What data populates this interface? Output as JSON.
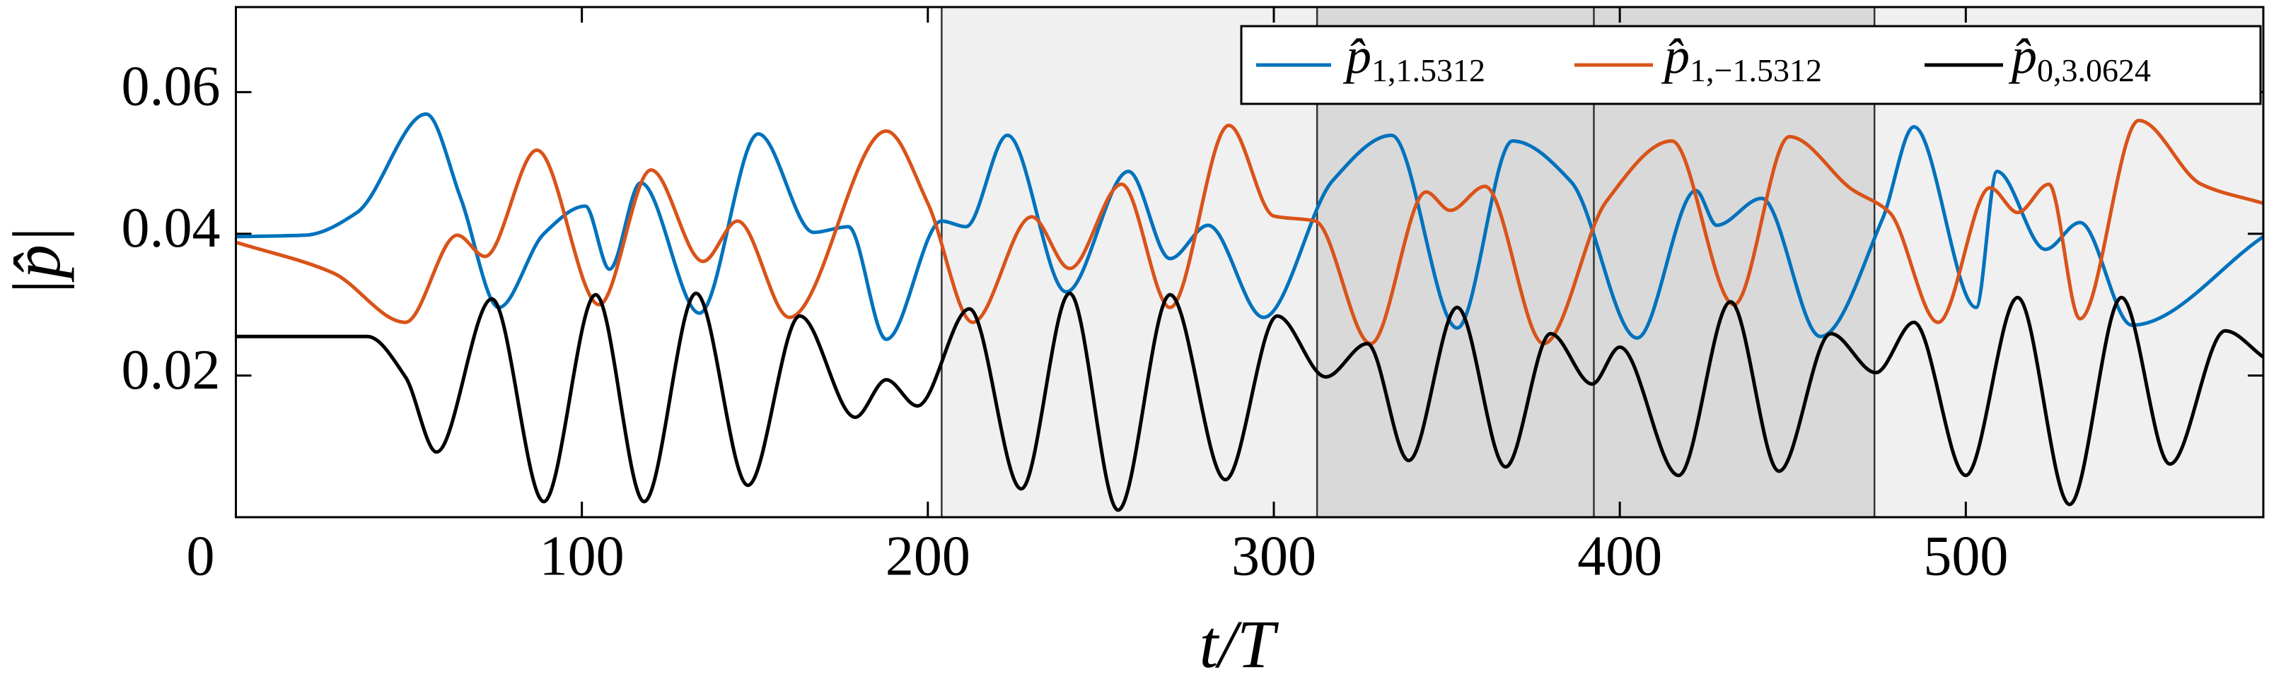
{
  "chart_data": {
    "type": "line",
    "xlabel": "t/T",
    "ylabel": "|p̂|",
    "xlim": [
      0,
      586
    ],
    "ylim": [
      0,
      0.072
    ],
    "xticks": [
      0,
      100,
      200,
      300,
      400,
      500
    ],
    "yticks": [
      0.02,
      0.04,
      0.06
    ],
    "regions": [
      {
        "from": 204,
        "to": 312.5,
        "color": "#f0f0f0"
      },
      {
        "from": 312.5,
        "to": 473.6,
        "color": "#d9d9d9"
      },
      {
        "from": 473.6,
        "to": 586,
        "color": "#f0f0f0"
      }
    ],
    "vlines": [
      204,
      312.5,
      392.5,
      473.6
    ],
    "legend": "upper right",
    "series": [
      {
        "name": "p̂1,1.5312",
        "color": "#0072bd",
        "x": [
          0,
          20,
          35,
          55,
          65,
          76,
          89,
          101,
          108,
          117,
          134,
          151,
          167,
          177,
          188,
          204,
          211,
          223,
          240,
          258,
          270,
          281,
          297,
          317,
          334,
          353,
          369,
          386,
          405,
          422,
          428,
          441,
          458,
          476,
          485,
          503,
          509,
          523,
          533,
          548,
          586
        ],
        "values": [
          0.0396,
          0.0398,
          0.043,
          0.0569,
          0.045,
          0.0296,
          0.04,
          0.0439,
          0.035,
          0.0472,
          0.0288,
          0.0541,
          0.0402,
          0.041,
          0.0251,
          0.0418,
          0.041,
          0.0539,
          0.0318,
          0.0488,
          0.0365,
          0.0412,
          0.0282,
          0.0475,
          0.0539,
          0.0267,
          0.0531,
          0.0473,
          0.0253,
          0.0461,
          0.0412,
          0.045,
          0.0255,
          0.0422,
          0.0551,
          0.0296,
          0.0488,
          0.0378,
          0.0416,
          0.0271,
          0.0396
        ]
      },
      {
        "name": "p̂1,−1.5312",
        "color": "#d95319",
        "x": [
          0,
          28,
          49,
          64,
          72,
          87,
          105,
          120,
          135,
          145,
          160,
          188,
          200,
          213,
          230,
          241,
          256,
          270,
          287,
          300,
          312,
          328,
          344,
          351,
          361,
          378,
          396,
          415,
          433,
          449,
          467,
          478,
          492,
          507,
          515,
          524,
          533,
          550,
          568,
          586
        ],
        "values": [
          0.0388,
          0.0345,
          0.0275,
          0.0398,
          0.0368,
          0.0518,
          0.03,
          0.049,
          0.0361,
          0.0418,
          0.0282,
          0.0545,
          0.0443,
          0.0275,
          0.0424,
          0.0351,
          0.047,
          0.0296,
          0.0553,
          0.0425,
          0.0418,
          0.0245,
          0.0459,
          0.0433,
          0.0467,
          0.0245,
          0.0445,
          0.0531,
          0.03,
          0.0537,
          0.0463,
          0.043,
          0.0275,
          0.0465,
          0.043,
          0.047,
          0.028,
          0.056,
          0.047,
          0.0443
        ]
      },
      {
        "name": "p̂0,3.0624",
        "color": "#000000",
        "x": [
          0,
          38,
          49,
          58,
          74,
          89,
          104,
          118,
          133,
          148,
          163,
          179,
          188,
          197,
          212,
          227,
          241,
          255,
          270,
          286,
          301,
          315,
          327,
          339,
          353,
          367,
          380,
          392,
          400,
          417,
          432,
          446,
          461,
          474,
          485,
          500,
          515,
          530,
          545,
          559,
          575,
          586
        ],
        "values": [
          0.0255,
          0.0255,
          0.0198,
          0.0092,
          0.0308,
          0.0022,
          0.0314,
          0.0022,
          0.0316,
          0.0045,
          0.0284,
          0.0141,
          0.0194,
          0.0157,
          0.0294,
          0.004,
          0.0316,
          0.001,
          0.0314,
          0.0053,
          0.0284,
          0.0198,
          0.0245,
          0.008,
          0.0296,
          0.0071,
          0.0259,
          0.0188,
          0.024,
          0.0059,
          0.0304,
          0.0065,
          0.0259,
          0.0204,
          0.0275,
          0.0059,
          0.031,
          0.0018,
          0.031,
          0.0075,
          0.0263,
          0.0226
        ]
      }
    ]
  }
}
